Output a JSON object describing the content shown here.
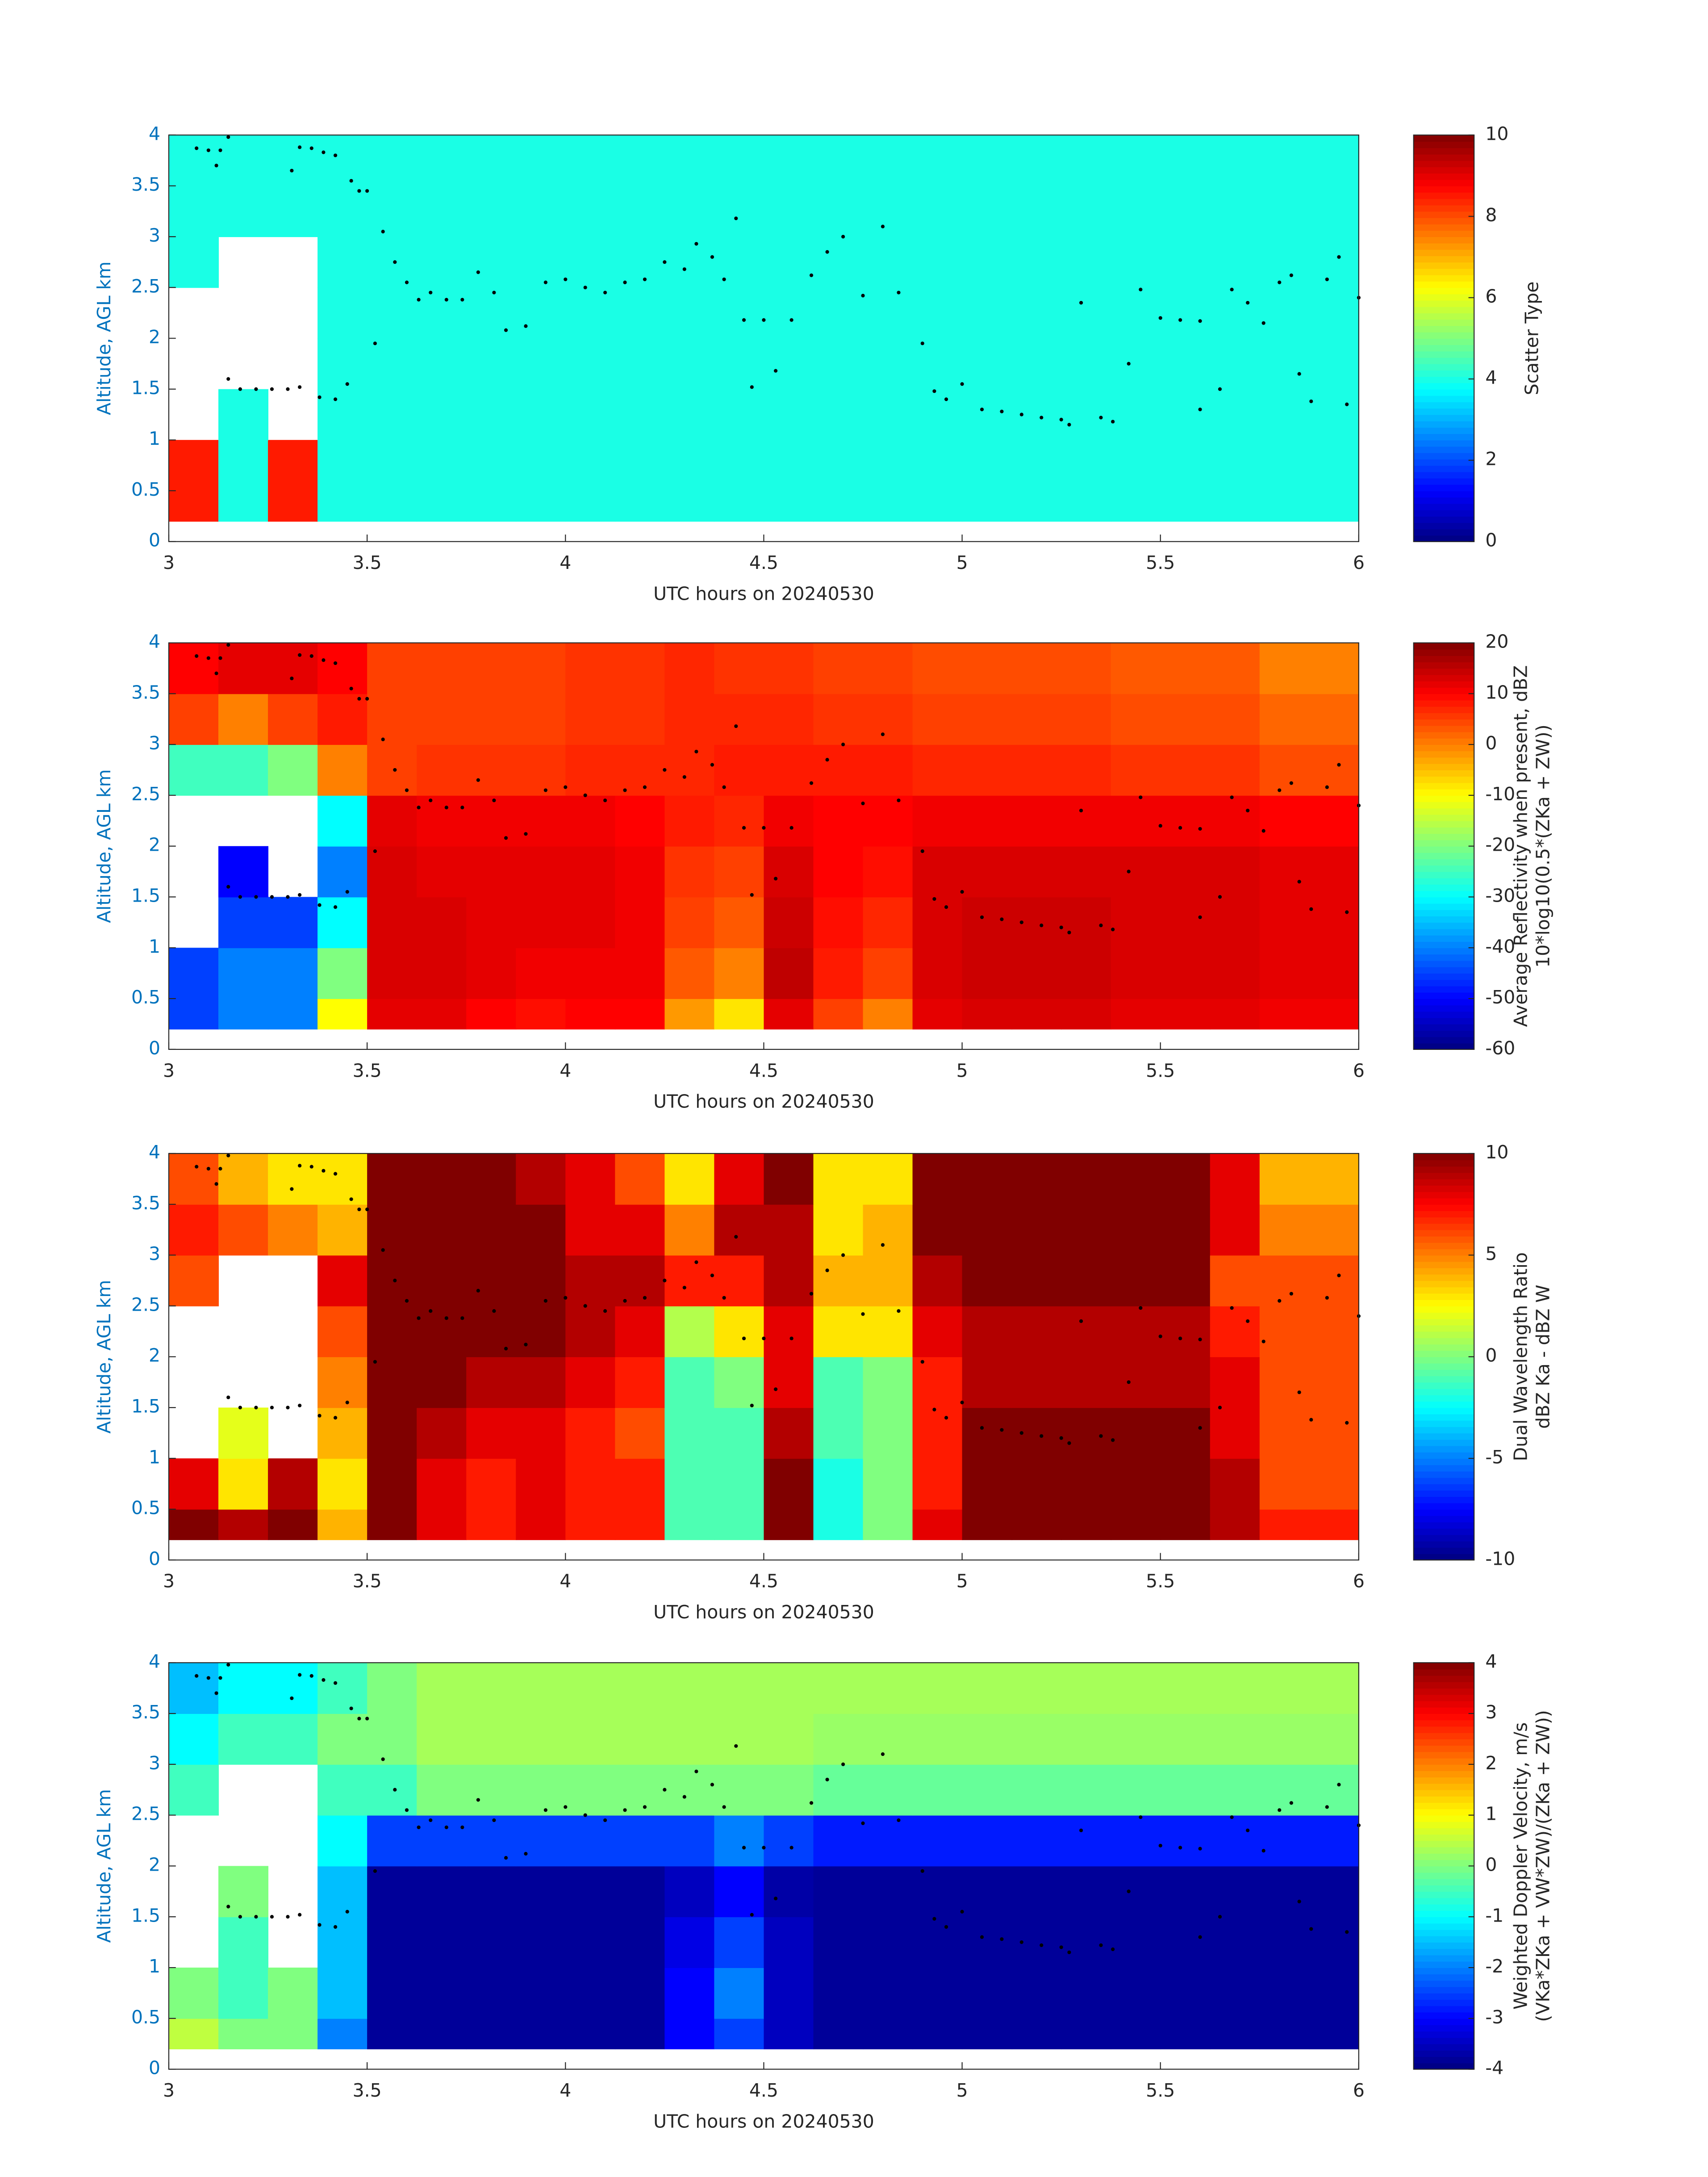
{
  "markers": {
    "x": [
      3.07,
      3.1,
      3.12,
      3.13,
      3.15,
      3.15,
      3.18,
      3.22,
      3.26,
      3.3,
      3.33,
      3.31,
      3.33,
      3.36,
      3.39,
      3.42,
      3.38,
      3.42,
      3.45,
      3.46,
      3.48,
      3.5,
      3.52,
      3.54,
      3.57,
      3.6,
      3.63,
      3.66,
      3.7,
      3.74,
      3.78,
      3.82,
      3.85,
      3.9,
      3.95,
      4.0,
      4.05,
      4.1,
      4.15,
      4.2,
      4.25,
      4.3,
      4.33,
      4.37,
      4.4,
      4.43,
      4.45,
      4.47,
      4.5,
      4.53,
      4.57,
      4.62,
      4.66,
      4.7,
      4.75,
      4.8,
      4.84,
      4.9,
      4.93,
      4.96,
      5.0,
      5.05,
      5.1,
      5.15,
      5.2,
      5.25,
      5.27,
      5.3,
      5.35,
      5.38,
      5.42,
      5.45,
      5.5,
      5.55,
      5.6,
      5.6,
      5.65,
      5.68,
      5.72,
      5.76,
      5.8,
      5.83,
      5.85,
      5.88,
      5.92,
      5.95,
      5.97,
      6.0
    ],
    "y": [
      3.87,
      3.85,
      3.7,
      3.85,
      3.98,
      1.6,
      1.5,
      1.5,
      1.5,
      1.5,
      1.52,
      3.65,
      3.88,
      3.87,
      3.83,
      3.8,
      1.42,
      1.4,
      1.55,
      3.55,
      3.45,
      3.45,
      1.95,
      3.05,
      2.75,
      2.55,
      2.38,
      2.45,
      2.38,
      2.38,
      2.65,
      2.45,
      2.08,
      2.12,
      2.55,
      2.58,
      2.5,
      2.45,
      2.55,
      2.58,
      2.75,
      2.68,
      2.93,
      2.8,
      2.58,
      3.18,
      2.18,
      1.52,
      2.18,
      1.68,
      2.18,
      2.62,
      2.85,
      3.0,
      2.42,
      3.1,
      2.45,
      1.95,
      1.48,
      1.4,
      1.55,
      1.3,
      1.28,
      1.25,
      1.22,
      1.2,
      1.15,
      2.35,
      1.22,
      1.18,
      1.75,
      2.48,
      2.2,
      2.18,
      2.17,
      1.3,
      1.5,
      2.48,
      2.35,
      2.15,
      2.55,
      2.62,
      1.65,
      1.38,
      2.58,
      2.8,
      1.35,
      2.4
    ]
  },
  "chart_data": [
    {
      "type": "heatmap",
      "colormap": "jet",
      "xlabel": "UTC hours on 20240530",
      "ylabel": "Altitude, AGL km",
      "colorbar_label": [
        "Scatter Type"
      ],
      "xlim": [
        3,
        6
      ],
      "ylim": [
        0,
        4
      ],
      "xticks": [
        3,
        3.5,
        4,
        4.5,
        5,
        5.5,
        6
      ],
      "yticks": [
        0,
        0.5,
        1,
        1.5,
        2,
        2.5,
        3,
        3.5,
        4
      ],
      "zlim": [
        0,
        10
      ],
      "zticks": [
        0,
        2,
        4,
        6,
        8,
        10
      ],
      "x_edges": [
        3,
        3.125,
        3.25,
        3.375,
        3.5,
        3.625,
        3.75,
        3.875,
        4,
        4.125,
        4.25,
        4.375,
        4.5,
        4.625,
        4.75,
        4.875,
        5,
        5.125,
        5.25,
        5.375,
        5.5,
        5.625,
        5.75,
        5.875,
        6
      ],
      "y_edges": [
        0.2,
        0.5,
        1,
        1.5,
        2,
        2.5,
        3,
        3.5,
        4
      ],
      "z": [
        [
          8.5,
          4,
          8.5,
          4,
          4,
          4,
          4,
          4,
          4,
          4,
          4,
          4,
          4,
          4,
          4,
          4,
          4,
          4,
          4,
          4,
          4,
          4,
          4,
          4
        ],
        [
          8.5,
          4,
          8.5,
          4,
          4,
          4,
          4,
          4,
          4,
          4,
          4,
          4,
          4,
          4,
          4,
          4,
          4,
          4,
          4,
          4,
          4,
          4,
          4,
          4
        ],
        [
          null,
          4,
          null,
          4,
          4,
          4,
          4,
          4,
          4,
          4,
          4,
          4,
          4,
          4,
          4,
          4,
          4,
          4,
          4,
          4,
          4,
          4,
          4,
          4
        ],
        [
          null,
          null,
          null,
          4,
          4,
          4,
          4,
          4,
          4,
          4,
          4,
          4,
          4,
          4,
          4,
          4,
          4,
          4,
          4,
          4,
          4,
          4,
          4,
          4
        ],
        [
          null,
          null,
          null,
          4,
          4,
          4,
          4,
          4,
          4,
          4,
          4,
          4,
          4,
          4,
          4,
          4,
          4,
          4,
          4,
          4,
          4,
          4,
          4,
          4
        ],
        [
          4,
          null,
          null,
          4,
          4,
          4,
          4,
          4,
          4,
          4,
          4,
          4,
          4,
          4,
          4,
          4,
          4,
          4,
          4,
          4,
          4,
          4,
          4,
          4
        ],
        [
          4,
          4,
          4,
          4,
          4,
          4,
          4,
          4,
          4,
          4,
          4,
          4,
          4,
          4,
          4,
          4,
          4,
          4,
          4,
          4,
          4,
          4,
          4,
          4
        ],
        [
          4,
          4,
          4,
          4,
          4,
          4,
          4,
          4,
          4,
          4,
          4,
          4,
          4,
          4,
          4,
          4,
          4,
          4,
          4,
          4,
          4,
          4,
          4,
          4
        ]
      ]
    },
    {
      "type": "heatmap",
      "colormap": "jet",
      "xlabel": "UTC hours on 20240530",
      "ylabel": "Altitude, AGL km",
      "colorbar_label": [
        "Average Reflectivity when present, dBZ",
        "10*log10(0.5*(ZKa + ZW))"
      ],
      "xlim": [
        3,
        6
      ],
      "ylim": [
        0,
        4
      ],
      "xticks": [
        3,
        3.5,
        4,
        4.5,
        5,
        5.5,
        6
      ],
      "yticks": [
        0,
        0.5,
        1,
        1.5,
        2,
        2.5,
        3,
        3.5,
        4
      ],
      "zlim": [
        -60,
        20
      ],
      "zticks": [
        -60,
        -50,
        -40,
        -30,
        -20,
        -10,
        0,
        10,
        20
      ],
      "x_edges": [
        3,
        3.125,
        3.25,
        3.375,
        3.5,
        3.625,
        3.75,
        3.875,
        4,
        4.125,
        4.25,
        4.375,
        4.5,
        4.625,
        4.75,
        4.875,
        5,
        5.125,
        5.25,
        5.375,
        5.5,
        5.625,
        5.75,
        5.875,
        6
      ],
      "y_edges": [
        0.2,
        0.5,
        1,
        1.5,
        2,
        2.5,
        3,
        3.5,
        4
      ],
      "z": [
        [
          -45,
          -40,
          -40,
          -10,
          12,
          12,
          10,
          9,
          10,
          10,
          -2,
          -8,
          12,
          5,
          0,
          12,
          13,
          13,
          13,
          12,
          12,
          12,
          11,
          11
        ],
        [
          -45,
          -40,
          -40,
          -20,
          13,
          13,
          12,
          11,
          11,
          11,
          3,
          0,
          15,
          8,
          5,
          13,
          14,
          14,
          14,
          13,
          13,
          13,
          12,
          12
        ],
        [
          null,
          -45,
          -45,
          -30,
          13,
          13,
          12,
          12,
          12,
          11,
          5,
          3,
          14,
          9,
          7,
          13,
          14,
          14,
          14,
          13,
          13,
          13,
          12,
          12
        ],
        [
          null,
          -50,
          null,
          -40,
          13,
          12,
          12,
          12,
          12,
          11,
          6,
          5,
          13,
          10,
          9,
          13,
          13,
          13,
          13,
          13,
          13,
          13,
          12,
          12
        ],
        [
          null,
          null,
          null,
          -30,
          12,
          11,
          11,
          11,
          11,
          10,
          8,
          7,
          11,
          10,
          10,
          11,
          11,
          11,
          11,
          11,
          11,
          11,
          10,
          10
        ],
        [
          -25,
          -25,
          -20,
          0,
          5,
          6,
          6,
          6,
          7,
          7,
          7,
          8,
          8,
          8,
          8,
          7,
          7,
          7,
          7,
          6,
          6,
          6,
          4,
          4
        ],
        [
          5,
          0,
          5,
          8,
          5,
          5,
          5,
          5,
          6,
          6,
          7,
          7,
          7,
          6,
          6,
          5,
          5,
          5,
          5,
          4,
          4,
          4,
          2,
          2
        ],
        [
          10,
          12,
          12,
          10,
          5,
          5,
          5,
          5,
          6,
          6,
          7,
          6,
          6,
          5,
          5,
          4,
          4,
          4,
          4,
          3,
          3,
          3,
          0,
          0
        ]
      ]
    },
    {
      "type": "heatmap",
      "colormap": "jet",
      "xlabel": "UTC hours on 20240530",
      "ylabel": "Altitude, AGL km",
      "colorbar_label": [
        "Dual Wavelength Ratio",
        "dBZ Ka - dBZ W"
      ],
      "xlim": [
        3,
        6
      ],
      "ylim": [
        0,
        4
      ],
      "xticks": [
        3,
        3.5,
        4,
        4.5,
        5,
        5.5,
        6
      ],
      "yticks": [
        0,
        0.5,
        1,
        1.5,
        2,
        2.5,
        3,
        3.5,
        4
      ],
      "zlim": [
        -10,
        10
      ],
      "zticks": [
        -10,
        -5,
        0,
        5,
        10
      ],
      "x_edges": [
        3,
        3.125,
        3.25,
        3.375,
        3.5,
        3.625,
        3.75,
        3.875,
        4,
        4.125,
        4.25,
        4.375,
        4.5,
        4.625,
        4.75,
        4.875,
        5,
        5.125,
        5.25,
        5.375,
        5.5,
        5.625,
        5.75,
        5.875,
        6
      ],
      "y_edges": [
        0.2,
        0.5,
        1,
        1.5,
        2,
        2.5,
        3,
        3.5,
        4
      ],
      "z": [
        [
          10,
          9,
          10,
          4,
          10,
          8,
          7,
          8,
          7,
          7,
          -1,
          -1,
          10,
          -2,
          0,
          8,
          10,
          10,
          10,
          10,
          10,
          9,
          7,
          7
        ],
        [
          8,
          3,
          9,
          3,
          10,
          8,
          7,
          8,
          7,
          7,
          -1,
          -1,
          10,
          -2,
          0,
          7,
          10,
          10,
          10,
          10,
          10,
          9,
          6,
          6
        ],
        [
          null,
          2,
          null,
          4,
          10,
          9,
          8,
          8,
          7,
          6,
          -1,
          -1,
          9,
          -1,
          0,
          7,
          10,
          10,
          10,
          10,
          10,
          8,
          6,
          6
        ],
        [
          null,
          null,
          null,
          5,
          10,
          10,
          9,
          9,
          8,
          7,
          -1,
          0,
          8,
          -1,
          0,
          7,
          9,
          9,
          9,
          9,
          9,
          8,
          6,
          6
        ],
        [
          null,
          null,
          null,
          6,
          10,
          10,
          10,
          10,
          9,
          8,
          1,
          3,
          8,
          3,
          3,
          8,
          9,
          9,
          9,
          9,
          9,
          7,
          6,
          6
        ],
        [
          6,
          null,
          null,
          8,
          10,
          10,
          10,
          10,
          9,
          9,
          7,
          7,
          9,
          4,
          4,
          9,
          10,
          10,
          10,
          10,
          10,
          6,
          6,
          6
        ],
        [
          7,
          6,
          5,
          4,
          10,
          10,
          10,
          10,
          8,
          8,
          5,
          9,
          9,
          3,
          4,
          10,
          10,
          10,
          10,
          10,
          10,
          8,
          5,
          5
        ],
        [
          6,
          4,
          3,
          3,
          10,
          10,
          10,
          9,
          8,
          6,
          3,
          8,
          10,
          3,
          3,
          10,
          10,
          10,
          10,
          10,
          10,
          8,
          4,
          4
        ]
      ]
    },
    {
      "type": "heatmap",
      "colormap": "jet",
      "xlabel": "UTC hours on 20240530",
      "ylabel": "Altitude, AGL km",
      "colorbar_label": [
        "Weighted Doppler Velocity, m/s",
        "(VKa*ZKa + VW*ZW)/(ZKa + ZW))"
      ],
      "xlim": [
        3,
        6
      ],
      "ylim": [
        0,
        4
      ],
      "xticks": [
        3,
        3.5,
        4,
        4.5,
        5,
        5.5,
        6
      ],
      "yticks": [
        0,
        0.5,
        1,
        1.5,
        2,
        2.5,
        3,
        3.5,
        4
      ],
      "zlim": [
        -4,
        4
      ],
      "zticks": [
        -4,
        -3,
        -2,
        -1,
        0,
        1,
        2,
        3,
        4
      ],
      "x_edges": [
        3,
        3.125,
        3.25,
        3.375,
        3.5,
        3.625,
        3.75,
        3.875,
        4,
        4.125,
        4.25,
        4.375,
        4.5,
        4.625,
        4.75,
        4.875,
        5,
        5.125,
        5.25,
        5.375,
        5.5,
        5.625,
        5.75,
        5.875,
        6
      ],
      "y_edges": [
        0.2,
        0.5,
        1,
        1.5,
        2,
        2.5,
        3,
        3.5,
        4
      ],
      "z": [
        [
          0.5,
          0,
          0,
          -2,
          -3.8,
          -3.8,
          -3.8,
          -3.8,
          -3.8,
          -3.8,
          -3,
          -2.5,
          -3.5,
          -3.8,
          -3.8,
          -3.8,
          -3.8,
          -3.8,
          -3.8,
          -3.8,
          -3.8,
          -3.8,
          -3.8,
          -3.8
        ],
        [
          0,
          -0.5,
          0,
          -1.5,
          -3.8,
          -3.8,
          -3.8,
          -3.8,
          -3.8,
          -3.8,
          -3,
          -2,
          -3.5,
          -3.8,
          -3.8,
          -3.8,
          -3.8,
          -3.8,
          -3.8,
          -3.8,
          -3.8,
          -3.8,
          -3.8,
          -3.8
        ],
        [
          null,
          -0.5,
          null,
          -1.5,
          -3.8,
          -3.8,
          -3.8,
          -3.8,
          -3.8,
          -3.8,
          -3.2,
          -2.5,
          -3.5,
          -3.8,
          -3.8,
          -3.8,
          -3.8,
          -3.8,
          -3.8,
          -3.8,
          -3.8,
          -3.8,
          -3.8,
          -3.8
        ],
        [
          null,
          0,
          null,
          -1.5,
          -3.8,
          -3.8,
          -3.8,
          -3.8,
          -3.8,
          -3.8,
          -3.5,
          -3,
          -3.7,
          -3.8,
          -3.8,
          -3.8,
          -3.8,
          -3.8,
          -3.8,
          -3.8,
          -3.8,
          -3.8,
          -3.8,
          -3.8
        ],
        [
          null,
          null,
          null,
          -1,
          -2.5,
          -2.5,
          -2.5,
          -2.5,
          -2.5,
          -2.5,
          -2.5,
          -2,
          -2.5,
          -2.8,
          -2.8,
          -2.8,
          -2.8,
          -2.8,
          -2.8,
          -2.8,
          -2.8,
          -2.8,
          -2.8,
          -2.8
        ],
        [
          -0.5,
          null,
          null,
          -0.5,
          -0.5,
          0,
          0,
          0,
          0,
          0,
          0,
          0,
          0,
          -0.2,
          -0.2,
          -0.2,
          -0.2,
          -0.2,
          -0.2,
          -0.2,
          -0.2,
          -0.2,
          -0.2,
          -0.2
        ],
        [
          -1,
          -0.5,
          -0.5,
          0,
          0,
          0.3,
          0.3,
          0.3,
          0.3,
          0.3,
          0.3,
          0.3,
          0.3,
          0.2,
          0.2,
          0.2,
          0.2,
          0.2,
          0.2,
          0.2,
          0.2,
          0.2,
          0.2,
          0.2
        ],
        [
          -1.5,
          -1,
          -1,
          -0.5,
          0,
          0.3,
          0.3,
          0.3,
          0.3,
          0.3,
          0.3,
          0.3,
          0.3,
          0.3,
          0.3,
          0.3,
          0.3,
          0.3,
          0.3,
          0.3,
          0.3,
          0.3,
          0.3,
          0.3
        ]
      ]
    }
  ]
}
